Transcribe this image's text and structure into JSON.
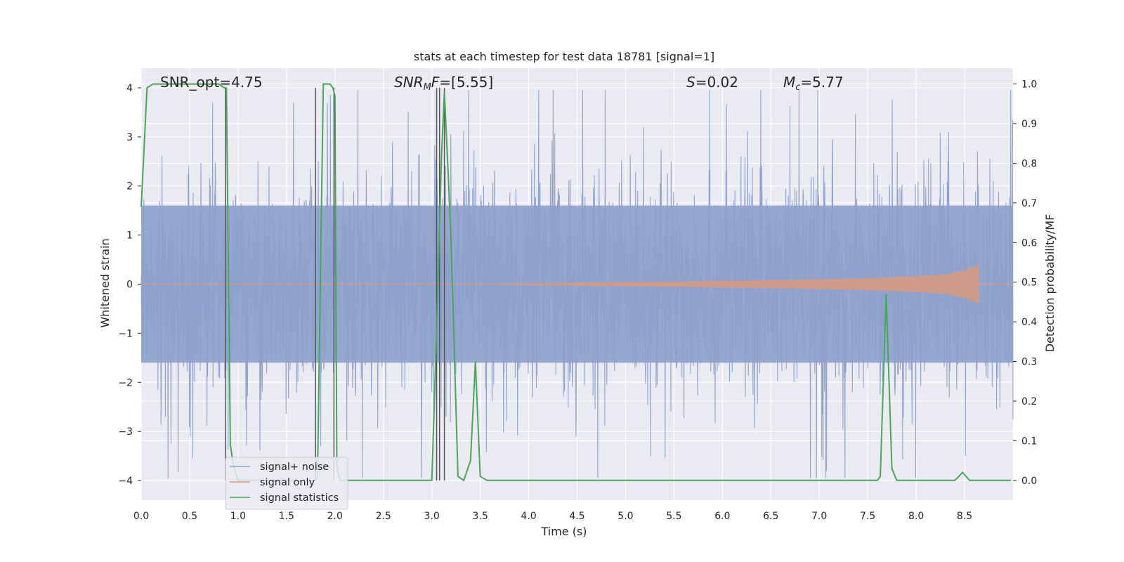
{
  "chart_data": {
    "type": "line",
    "title": "stats at each timestep for test data 18781 [signal=1]",
    "xlabel": "Time (s)",
    "ylabel": "Whitened strain",
    "ylabel_right": "Detection probability/MF",
    "xlim": [
      0.0,
      9.0
    ],
    "ylim": [
      -4.4,
      4.4
    ],
    "ylim_right": [
      -0.05,
      1.04
    ],
    "x_ticks": [
      "0.0",
      "0.5",
      "1.0",
      "1.5",
      "2.0",
      "2.5",
      "3.0",
      "3.5",
      "4.0",
      "4.5",
      "5.0",
      "5.5",
      "6.0",
      "6.5",
      "7.0",
      "7.5",
      "8.0",
      "8.5"
    ],
    "y_ticks": [
      "−4",
      "−3",
      "−2",
      "−1",
      "0",
      "1",
      "2",
      "3",
      "4"
    ],
    "y_right_ticks": [
      "0.0",
      "0.1",
      "0.2",
      "0.3",
      "0.4",
      "0.5",
      "0.6",
      "0.7",
      "0.8",
      "0.9",
      "1.0"
    ],
    "grid": true,
    "legend_position": "lower-left",
    "annotations": {
      "snr_opt": "SNR_opt=4.75",
      "snr_mf_sym": "SNR",
      "snr_mf_sub": "M",
      "snr_mf_sym2": "F",
      "snr_mf_val": "=[5.55]",
      "s_sym": "S",
      "s_val": "=0.02",
      "mc_sym": "M",
      "mc_sub": "c",
      "mc_val": "=5.77"
    },
    "series": [
      {
        "name": "signal+ noise",
        "color": "#8da0cb",
        "description": "whitened strain noise, roughly within ±1.6 with spikes to ±4"
      },
      {
        "name": "signal only",
        "color": "#d69a82",
        "envelope_x": [
          3.7,
          4.5,
          5.5,
          6.5,
          7.5,
          8.0,
          8.3,
          8.5,
          8.6,
          8.65
        ],
        "envelope_amp": [
          0.01,
          0.03,
          0.05,
          0.08,
          0.12,
          0.16,
          0.2,
          0.28,
          0.35,
          0.4
        ]
      },
      {
        "name": "signal statistics",
        "color": "#4aa55a",
        "x": [
          0.0,
          0.06,
          0.12,
          0.3,
          0.5,
          0.7,
          0.8,
          0.86,
          0.88,
          0.92,
          0.95,
          1.0,
          1.8,
          1.82,
          1.88,
          1.95,
          1.98,
          2.0,
          2.02,
          2.05,
          2.1,
          3.0,
          3.05,
          3.1,
          3.13,
          3.17,
          3.2,
          3.27,
          3.33,
          3.4,
          3.45,
          3.5,
          3.57,
          4.0,
          5.0,
          6.0,
          7.0,
          7.5,
          7.6,
          7.63,
          7.69,
          7.75,
          7.8,
          8.0,
          8.1,
          8.2,
          8.3,
          8.4,
          8.48,
          8.55,
          8.6,
          8.7,
          8.98
        ],
        "y": [
          0.69,
          0.99,
          1.0,
          1.0,
          1.0,
          1.0,
          1.0,
          0.99,
          0.99,
          0.09,
          0.04,
          0.0,
          0.0,
          0.01,
          1.0,
          1.0,
          0.99,
          0.97,
          0.04,
          0.0,
          0.0,
          0.0,
          0.38,
          0.82,
          0.98,
          0.77,
          0.6,
          0.01,
          0.0,
          0.05,
          0.3,
          0.01,
          0.0,
          0.0,
          0.0,
          0.0,
          0.0,
          0.0,
          0.0,
          0.01,
          0.47,
          0.03,
          0.0,
          0.0,
          0.0,
          0.0,
          0.0,
          0.0,
          0.02,
          0.0,
          0.0,
          0.0,
          0.0
        ]
      }
    ],
    "vertical_lines_x": [
      0.87,
      1.8,
      1.99,
      3.05,
      3.08,
      3.13
    ]
  }
}
